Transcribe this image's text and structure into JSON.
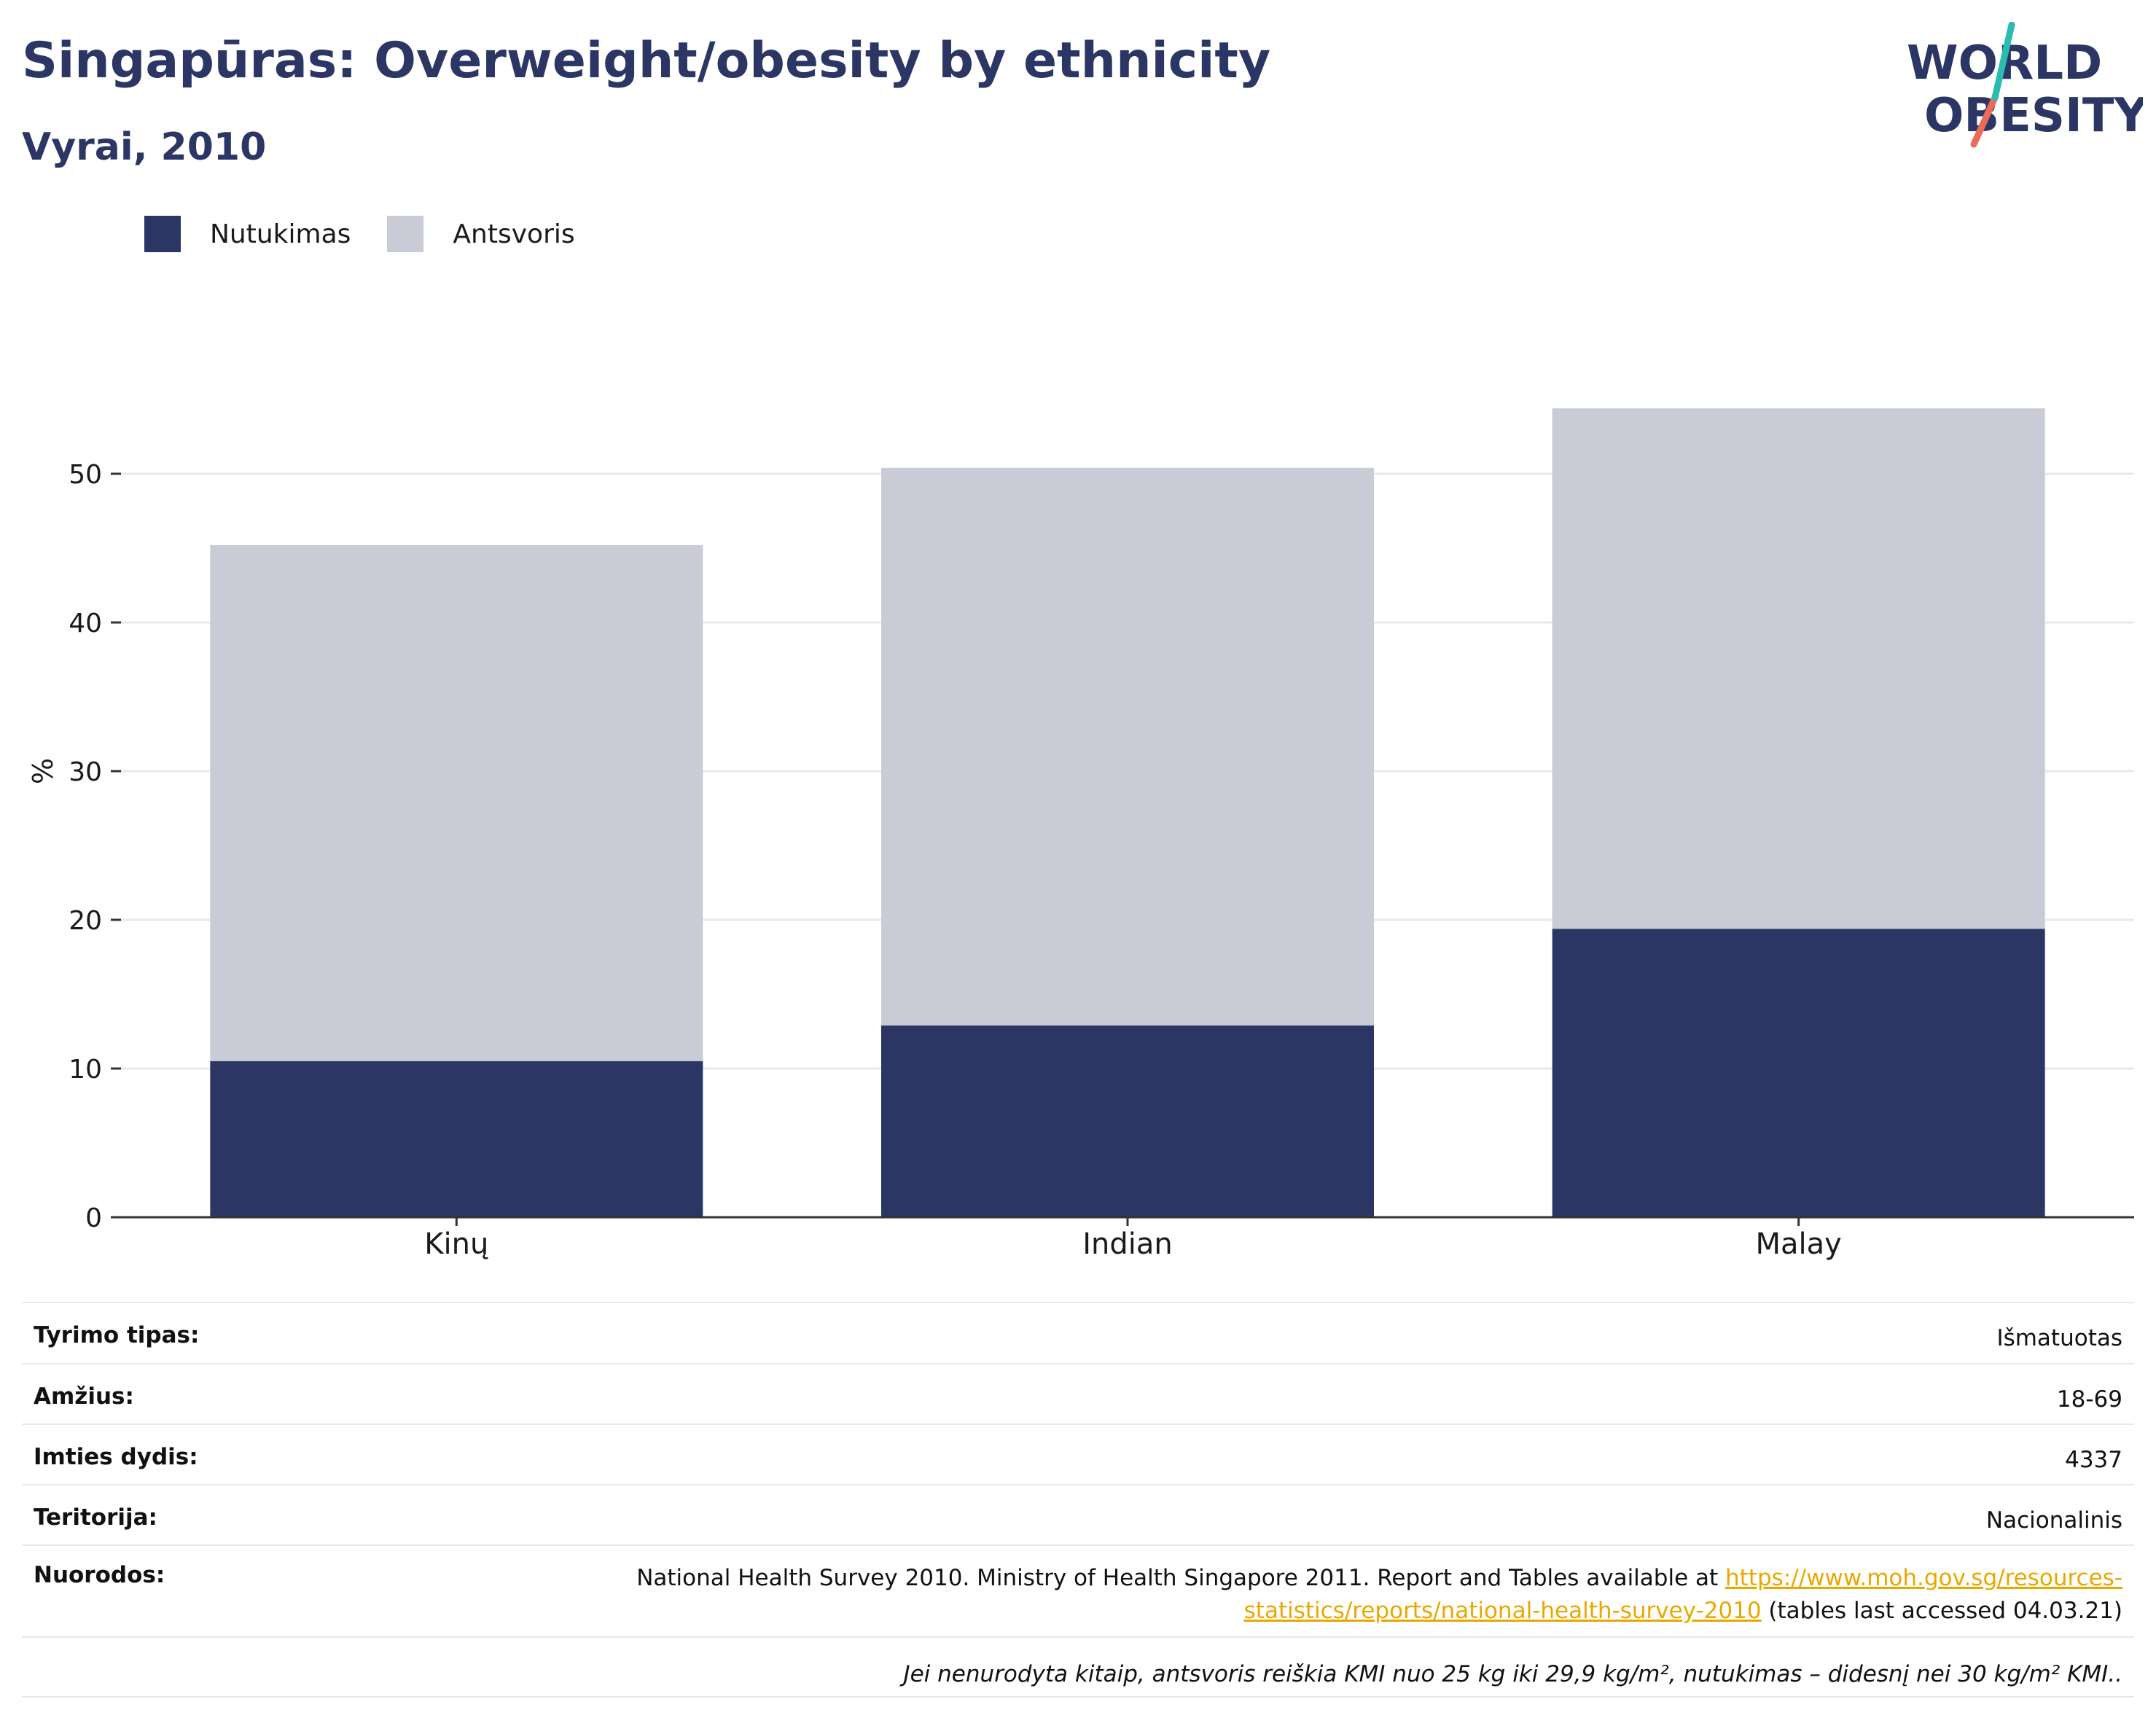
{
  "title": "Singapūras: Overweight/obesity by ethnicity",
  "subtitle": "Vyrai, 2010",
  "logo": {
    "line1": "WORLD",
    "line2": "OBESITY"
  },
  "colors": {
    "obesity": "#2b3664",
    "overweight": "#c9cbd6",
    "accent_teal": "#2bbcb0",
    "accent_coral": "#ea6b5a",
    "link": "#e9a800"
  },
  "chart_data": {
    "type": "bar",
    "stacked": true,
    "categories": [
      "Kinų",
      "Indian",
      "Malay"
    ],
    "series": [
      {
        "name": "Nutukimas",
        "values": [
          10.5,
          12.9,
          19.4
        ],
        "color": "#2b3664"
      },
      {
        "name": "Antsvoris",
        "values": [
          34.7,
          37.5,
          35.0
        ],
        "color": "#c9cbd6"
      }
    ],
    "ylabel": "%",
    "yticks": [
      0,
      10,
      20,
      30,
      40,
      50
    ],
    "ylim": [
      0,
      60
    ],
    "grid": true,
    "legend": "top-left"
  },
  "meta": {
    "rows": [
      {
        "label": "Tyrimo tipas:",
        "value": "Išmatuotas"
      },
      {
        "label": "Amžius:",
        "value": "18-69"
      },
      {
        "label": "Imties dydis:",
        "value": "4337"
      },
      {
        "label": "Teritorija:",
        "value": "Nacionalinis"
      }
    ],
    "references": {
      "label": "Nuorodos:",
      "text_before": "National Health Survey 2010. Ministry of Health Singapore 2011. Report and Tables available at ",
      "link_line1": "https://www.moh.gov.sg/resources-",
      "link_line2": "statistics/reports/national-health-survey-2010",
      "text_after": " (tables last accessed 04.03.21)"
    },
    "footnote": "Jei nenurodyta kitaip, antsvoris reiškia KMI nuo 25 kg iki 29,9 kg/m², nutukimas – didesnį nei 30 kg/m² KMI.."
  }
}
